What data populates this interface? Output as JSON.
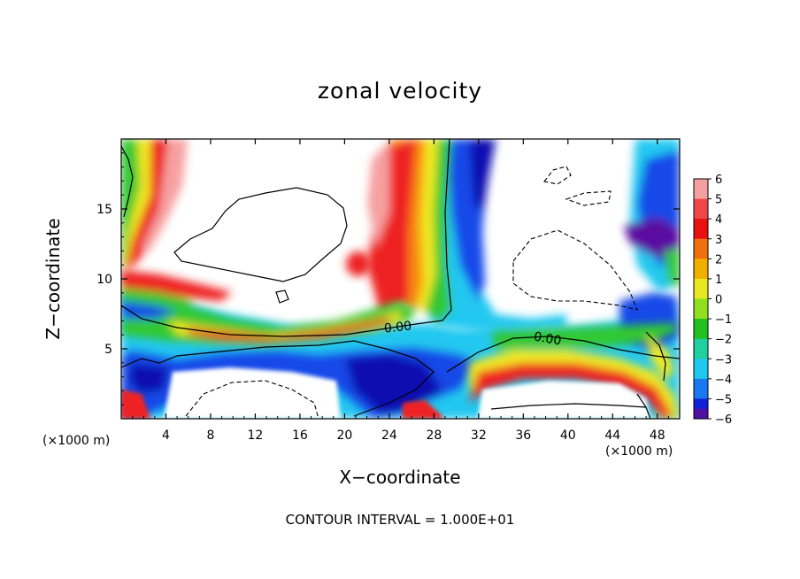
{
  "chart_data": {
    "type": "heatmap",
    "title": "zonal velocity",
    "xlabel": "X−coordinate",
    "ylabel": "Z−coordinate",
    "x_unit": "(×1000 m)",
    "footnote": "CONTOUR INTERVAL = 1.000E+01",
    "xlim": [
      0,
      50
    ],
    "ylim": [
      0,
      20
    ],
    "x_ticks": [
      4,
      8,
      12,
      16,
      20,
      24,
      28,
      32,
      36,
      40,
      44,
      48
    ],
    "y_ticks": [
      5,
      10,
      15
    ],
    "colorbar": {
      "levels": [
        6,
        5,
        4,
        3,
        2,
        1,
        0,
        -1,
        -2,
        -3,
        -4,
        -5,
        -6
      ],
      "labels": [
        "6",
        "5",
        "4",
        "3",
        "2",
        "1",
        "0",
        "−1",
        "−2",
        "−3",
        "−4",
        "−5",
        "−6"
      ],
      "colors": [
        "#f4a0a0",
        "#f04848",
        "#e81010",
        "#f07010",
        "#f0b000",
        "#e8e820",
        "#90e020",
        "#20c020",
        "#20d0a0",
        "#20c8f0",
        "#1878f0",
        "#1020d8",
        "#5010a0"
      ]
    },
    "contour_labels": [
      "0.00",
      "0.00"
    ],
    "grid": false
  },
  "colors": {
    "bg": "#ffffff",
    "red": "#ee2020",
    "orange": "#f88a10",
    "yellow": "#f0e820",
    "green": "#30c830",
    "cyan": "#20c8f0",
    "blue": "#1848e8",
    "navy": "#1010b0",
    "purple": "#5a10a0",
    "pink": "#f6a0a0"
  }
}
